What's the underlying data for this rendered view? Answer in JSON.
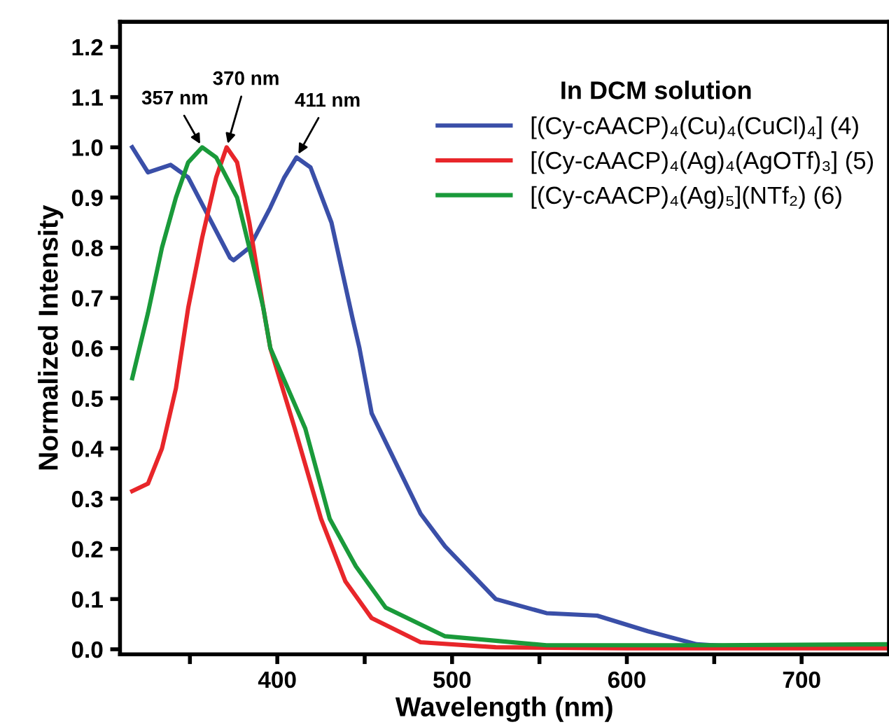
{
  "chart_data": {
    "type": "line",
    "xlabel": "Wavelength (nm)",
    "ylabel": "Normalized Intensity",
    "legend_title": "In DCM solution",
    "legend": "top right",
    "grid": false,
    "marker": "none",
    "line_style": "solid",
    "xlim": [
      310,
      750
    ],
    "ylim": [
      -0.01,
      1.25
    ],
    "xticks": [
      {
        "value": 350,
        "label": null
      },
      400,
      {
        "value": 450,
        "label": null
      },
      500,
      {
        "value": 550,
        "label": null
      },
      600,
      {
        "value": 650,
        "label": null
      },
      700
    ],
    "yticks": [
      {
        "value": 0,
        "label": "0.0"
      },
      0.1,
      0.2,
      0.3,
      0.4,
      0.5,
      0.6,
      0.7,
      0.8,
      0.9,
      {
        "value": 1,
        "label": "1.0"
      },
      1.1,
      1.2
    ],
    "series": [
      {
        "name": "[(Cy-cAACP)₄(Cu)₄(CuCl)₄] (4)",
        "color": "#3a4fa8",
        "x": [
          317,
          326,
          339,
          349,
          361,
          373,
          375,
          384,
          396,
          404,
          411,
          419,
          431,
          443,
          447,
          454,
          468,
          482,
          496,
          525,
          554,
          583,
          612,
          640,
          669,
          750
        ],
        "values": [
          1.0,
          0.95,
          0.965,
          0.94,
          0.86,
          0.78,
          0.775,
          0.8,
          0.88,
          0.94,
          0.98,
          0.96,
          0.85,
          0.66,
          0.6,
          0.47,
          0.37,
          0.27,
          0.205,
          0.1,
          0.072,
          0.067,
          0.036,
          0.01,
          0.004,
          0.005
        ]
      },
      {
        "name": "[(Cy-cAACP)₄(Ag)₄(AgOTf)₃] (5)",
        "color": "#e8262a",
        "x": [
          317,
          326,
          334,
          342,
          349,
          357,
          365,
          371,
          377,
          384,
          392,
          396,
          410,
          425,
          439,
          454,
          482,
          525,
          600,
          750
        ],
        "values": [
          0.315,
          0.33,
          0.4,
          0.52,
          0.68,
          0.82,
          0.94,
          1.0,
          0.97,
          0.85,
          0.68,
          0.6,
          0.44,
          0.26,
          0.135,
          0.062,
          0.014,
          0.004,
          0.002,
          0.002
        ]
      },
      {
        "name": "[(Cy-cAACP)₄(Ag)₅](NTf₂) (6)",
        "color": "#1a9a3a",
        "x": [
          317,
          326,
          334,
          342,
          349,
          357,
          365,
          377,
          384,
          392,
          396,
          416,
          430,
          445,
          462,
          496,
          554,
          650,
          750
        ],
        "values": [
          0.54,
          0.67,
          0.8,
          0.9,
          0.97,
          1.0,
          0.98,
          0.9,
          0.8,
          0.68,
          0.6,
          0.44,
          0.26,
          0.165,
          0.083,
          0.026,
          0.008,
          0.008,
          0.01
        ]
      }
    ],
    "annotations": [
      {
        "text": "357 nm",
        "x": 357,
        "y": 1.0
      },
      {
        "text": "370 nm",
        "x": 371,
        "y": 1.0
      },
      {
        "text": "411 nm",
        "x": 411,
        "y": 0.98
      }
    ]
  }
}
